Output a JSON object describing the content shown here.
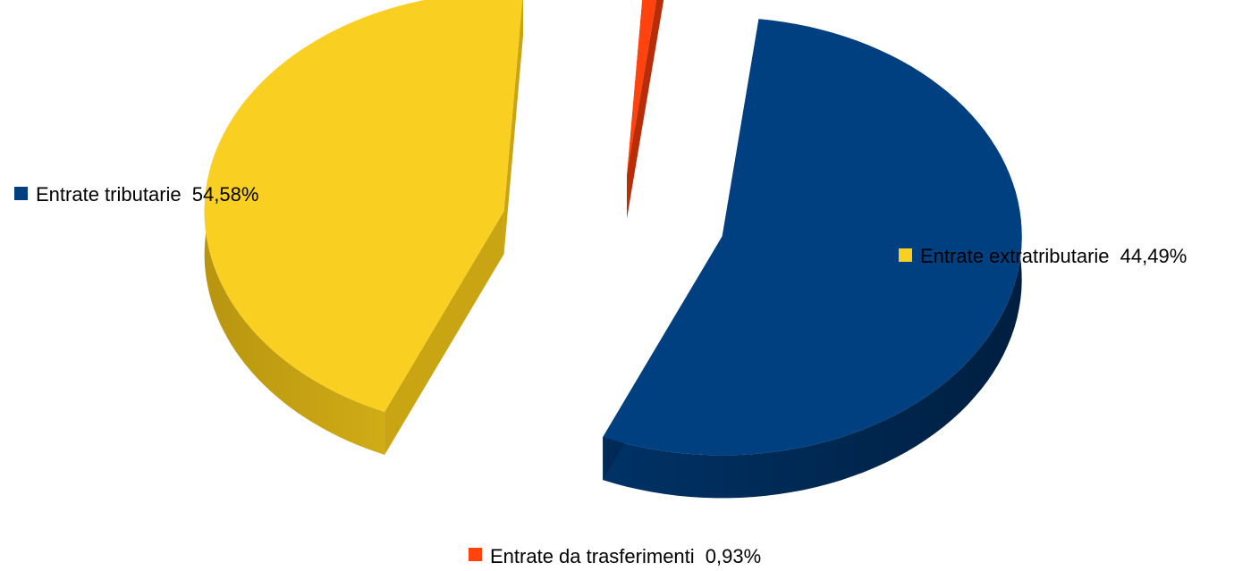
{
  "chart_data": {
    "type": "pie",
    "style": "3d-exploded",
    "title": "",
    "legend_placement": "labels-beside-slices",
    "slices": [
      {
        "label": "Entrate tributarie",
        "value": 54.58,
        "display": "54,58%",
        "color": "#004080",
        "shadow": "#002a55"
      },
      {
        "label": "Entrate extratributarie",
        "value": 44.49,
        "display": "44,49%",
        "color": "#f9d022",
        "shadow": "#c9a413"
      },
      {
        "label": "Entrate da trasferimenti",
        "value": 0.93,
        "display": "0,93%",
        "color": "#ff420e",
        "shadow": "#b82d08"
      }
    ]
  }
}
